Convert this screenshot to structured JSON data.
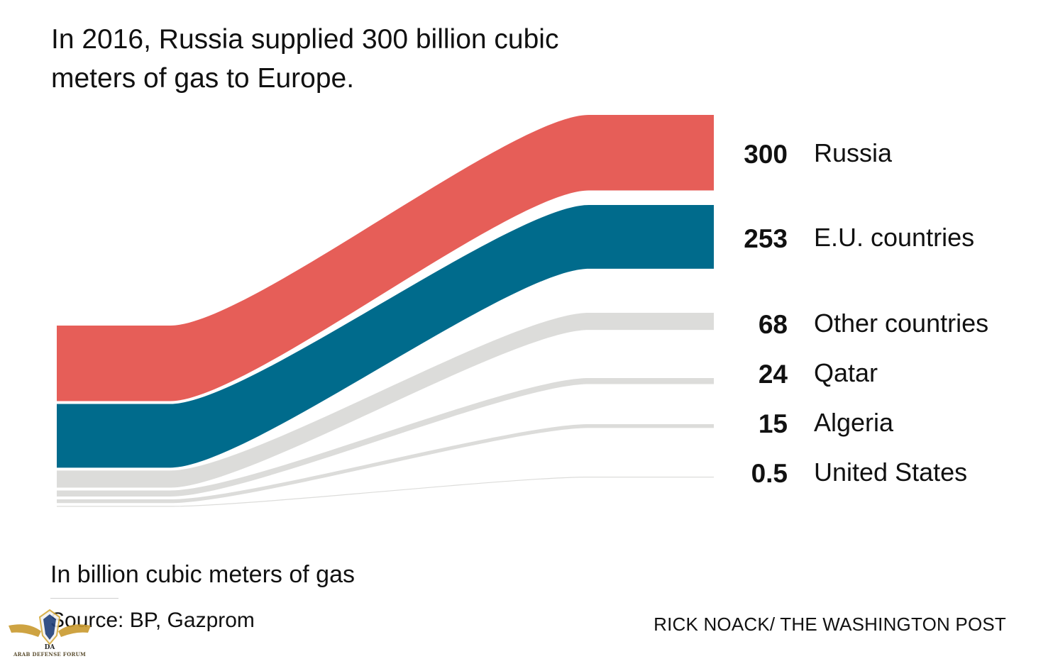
{
  "title": "In 2016, Russia supplied 300 billion cubic meters of gas to Europe.",
  "unit_note": "In billion cubic meters of gas",
  "source": "Source: BP, Gazprom",
  "credit": "RICK NOACK/ THE WASHINGTON POST",
  "watermark": {
    "text": "ARAB DEFENSE FORUM",
    "monogram": "DA"
  },
  "colors": {
    "russia": "#e65e58",
    "eu": "#006b8c",
    "other": "#dcdcda",
    "text": "#111111"
  },
  "chart_data": {
    "type": "sankey",
    "title": "In 2016, Russia supplied 300 billion cubic meters of gas to Europe.",
    "unit": "billion cubic meters",
    "series": [
      {
        "name": "Russia",
        "value": 300,
        "label": "300",
        "color": "#e65e58"
      },
      {
        "name": "E.U. countries",
        "value": 253,
        "label": "253",
        "color": "#006b8c"
      },
      {
        "name": "Other countries",
        "value": 68,
        "label": "68",
        "color": "#dcdcda"
      },
      {
        "name": "Qatar",
        "value": 24,
        "label": "24",
        "color": "#dcdcda"
      },
      {
        "name": "Algeria",
        "value": 15,
        "label": "15",
        "color": "#dcdcda"
      },
      {
        "name": "United States",
        "value": 0.5,
        "label": "0.5",
        "color": "#dcdcda"
      }
    ]
  }
}
